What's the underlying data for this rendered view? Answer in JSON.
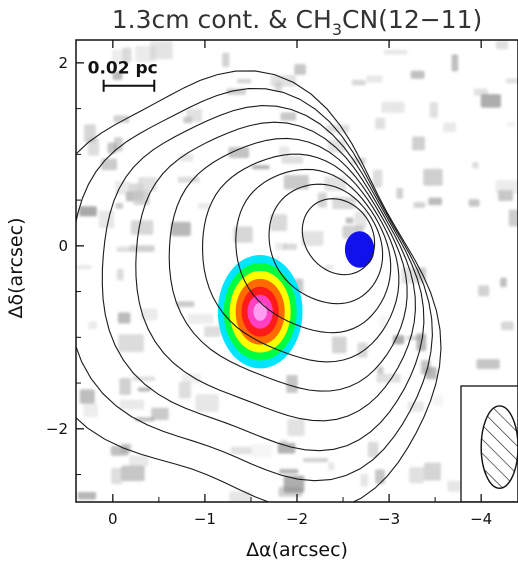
{
  "chart_data": {
    "type": "contour map",
    "title": "1.3cm cont. & CH",
    "title_subscript": "3",
    "title_suffix": "CN(12−11)",
    "xlabel": "Δα(arcsec)",
    "ylabel": "Δδ(arcsec)",
    "xlim": [
      0.4,
      -4.4
    ],
    "ylim": [
      -2.8,
      2.25
    ],
    "x_axis_reversed": true,
    "x_ticks": [
      0,
      -1,
      -2,
      -3,
      -4
    ],
    "x_tick_labels": [
      "0",
      "−1",
      "−2",
      "−3",
      "−4"
    ],
    "y_ticks": [
      2,
      0,
      -2
    ],
    "y_tick_labels": [
      "2",
      "0",
      "−2"
    ],
    "scale_bar": {
      "label": "0.02 pc",
      "x_from": 0.1,
      "x_to": -0.45,
      "y": 1.75
    },
    "colors": {
      "contour": "#1a1a1a",
      "background_noise": "#9e9e9e",
      "blob_ring": [
        "#00e5ff",
        "#00ff40",
        "#ffff00",
        "#ff6a00",
        "#ff1a1a",
        "#ff40c0",
        "#ff9ef0"
      ],
      "secondary_blob": "#1111ee"
    },
    "continuum_sources": [
      {
        "name": "main",
        "x": -1.6,
        "y": -0.72,
        "rx": 0.46,
        "ry": 0.62
      },
      {
        "name": "secondary",
        "x": -2.68,
        "y": -0.04,
        "rx": 0.16,
        "ry": 0.2
      }
    ],
    "contour_levels": 9,
    "beam": {
      "x": -4.2,
      "y": -2.2,
      "major": 0.9,
      "minor": 0.4,
      "hatched": true
    }
  }
}
